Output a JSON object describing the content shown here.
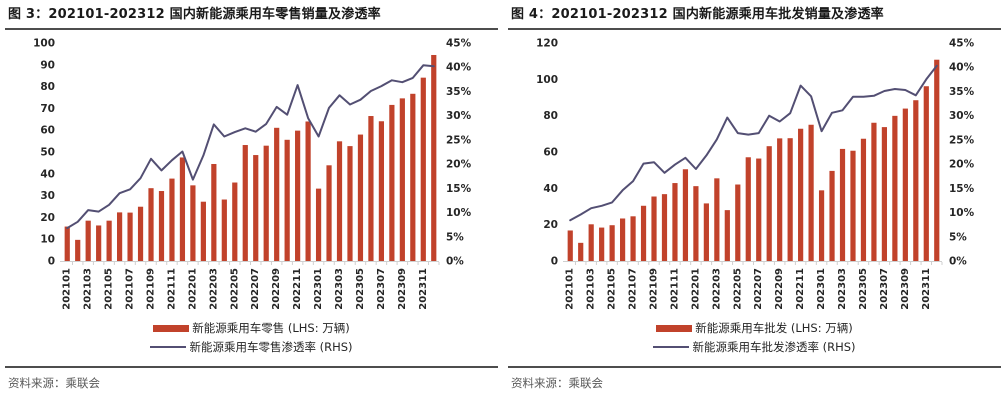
{
  "colors": {
    "bar": "#C1422B",
    "line": "#534F73",
    "rule": "#4D4D4D",
    "axis_text": "#262626",
    "tick_mark": "#CFCFCF",
    "title_text": "#1A1A1A",
    "source_text": "#595959"
  },
  "panels": [
    {
      "title": "图 3：202101-202312 国内新能源乘用车零售销量及渗透率",
      "legend": [
        {
          "type": "bar",
          "label": "新能源乘用车零售 (LHS: 万辆)"
        },
        {
          "type": "line",
          "label": "新能源乘用车零售渗透率 (RHS)"
        }
      ],
      "source": "资料来源：乘联会"
    },
    {
      "title": "图 4：202101-202312 国内新能源乘用车批发销量及渗透率",
      "legend": [
        {
          "type": "bar",
          "label": "新能源乘用车批发 (LHS: 万辆)"
        },
        {
          "type": "line",
          "label": "新能源乘用车批发渗透率 (RHS)"
        }
      ],
      "source": "资料来源：乘联会"
    }
  ],
  "chart_data": [
    {
      "type": "bar+line",
      "title": "图 3：202101-202312 国内新能源乘用车零售销量及渗透率",
      "categories": [
        "202101",
        "202102",
        "202103",
        "202104",
        "202105",
        "202106",
        "202107",
        "202108",
        "202109",
        "202110",
        "202111",
        "202112",
        "202201",
        "202202",
        "202203",
        "202204",
        "202205",
        "202206",
        "202207",
        "202208",
        "202209",
        "202210",
        "202211",
        "202212",
        "202301",
        "202302",
        "202303",
        "202304",
        "202305",
        "202306",
        "202307",
        "202308",
        "202309",
        "202310",
        "202311",
        "202312"
      ],
      "x_tick_labels": [
        "202101",
        "202103",
        "202105",
        "202107",
        "202109",
        "202111",
        "202201",
        "202203",
        "202205",
        "202207",
        "202209",
        "202211",
        "202301",
        "202303",
        "202305",
        "202307",
        "202309",
        "202311"
      ],
      "series": [
        {
          "name": "新能源乘用车零售 (LHS: 万辆)",
          "type": "bar",
          "axis": "left",
          "values": [
            15.8,
            9.7,
            18.5,
            16.3,
            18.5,
            22.3,
            22.2,
            24.9,
            33.4,
            32.1,
            37.8,
            47.5,
            34.7,
            27.2,
            44.5,
            28.2,
            36.0,
            53.2,
            48.6,
            52.9,
            61.1,
            55.6,
            59.8,
            64.0,
            33.2,
            43.9,
            54.9,
            52.7,
            58.0,
            66.5,
            64.1,
            71.6,
            74.6,
            76.7,
            84.1,
            94.5
          ]
        },
        {
          "name": "新能源乘用车零售渗透率 (RHS)",
          "type": "line",
          "axis": "right",
          "values": [
            6.8,
            8.1,
            10.5,
            10.2,
            11.6,
            14.0,
            14.8,
            17.1,
            21.1,
            18.7,
            20.8,
            22.6,
            16.8,
            21.8,
            28.2,
            25.7,
            26.6,
            27.4,
            26.7,
            28.3,
            31.8,
            30.2,
            36.3,
            29.5,
            25.7,
            31.6,
            34.2,
            32.3,
            33.3,
            35.1,
            36.1,
            37.3,
            36.9,
            37.8,
            40.4,
            40.2
          ]
        }
      ],
      "left_axis": {
        "min": 0,
        "max": 100,
        "step": 10,
        "format": "number"
      },
      "right_axis": {
        "min": 0,
        "max": 45,
        "step": 5,
        "format": "percent"
      },
      "grid": false,
      "legend_position": "bottom"
    },
    {
      "type": "bar+line",
      "title": "图 4：202101-202312 国内新能源乘用车批发销量及渗透率",
      "categories": [
        "202101",
        "202102",
        "202103",
        "202104",
        "202105",
        "202106",
        "202107",
        "202108",
        "202109",
        "202110",
        "202111",
        "202112",
        "202201",
        "202202",
        "202203",
        "202204",
        "202205",
        "202206",
        "202207",
        "202208",
        "202209",
        "202210",
        "202211",
        "202212",
        "202301",
        "202302",
        "202303",
        "202304",
        "202305",
        "202306",
        "202307",
        "202308",
        "202309",
        "202310",
        "202311",
        "202312"
      ],
      "x_tick_labels": [
        "202101",
        "202103",
        "202105",
        "202107",
        "202109",
        "202111",
        "202201",
        "202203",
        "202205",
        "202207",
        "202209",
        "202211",
        "202301",
        "202303",
        "202305",
        "202307",
        "202309",
        "202311"
      ],
      "series": [
        {
          "name": "新能源乘用车批发 (LHS: 万辆)",
          "type": "bar",
          "axis": "left",
          "values": [
            16.8,
            10.0,
            20.2,
            18.4,
            19.7,
            23.4,
            24.6,
            30.4,
            35.5,
            36.8,
            42.9,
            50.5,
            41.2,
            31.7,
            45.5,
            28.0,
            42.1,
            57.1,
            56.4,
            63.2,
            67.5,
            67.6,
            72.8,
            75.0,
            38.9,
            49.6,
            61.7,
            60.7,
            67.3,
            76.1,
            73.7,
            79.9,
            83.9,
            88.5,
            96.2,
            110.8
          ]
        },
        {
          "name": "新能源乘用车批发渗透率 (RHS)",
          "type": "line",
          "axis": "right",
          "values": [
            8.4,
            9.6,
            10.9,
            11.4,
            12.1,
            14.6,
            16.5,
            20.1,
            20.4,
            18.2,
            19.9,
            21.3,
            19.0,
            21.8,
            25.1,
            29.6,
            26.4,
            26.1,
            26.4,
            30.0,
            28.8,
            30.5,
            36.2,
            34.0,
            26.8,
            30.6,
            31.1,
            33.9,
            33.9,
            34.1,
            35.1,
            35.5,
            35.3,
            34.2,
            37.5,
            40.3
          ]
        }
      ],
      "left_axis": {
        "min": 0,
        "max": 120,
        "step": 20,
        "format": "number"
      },
      "right_axis": {
        "min": 0,
        "max": 45,
        "step": 5,
        "format": "percent"
      },
      "grid": false,
      "legend_position": "bottom"
    }
  ]
}
